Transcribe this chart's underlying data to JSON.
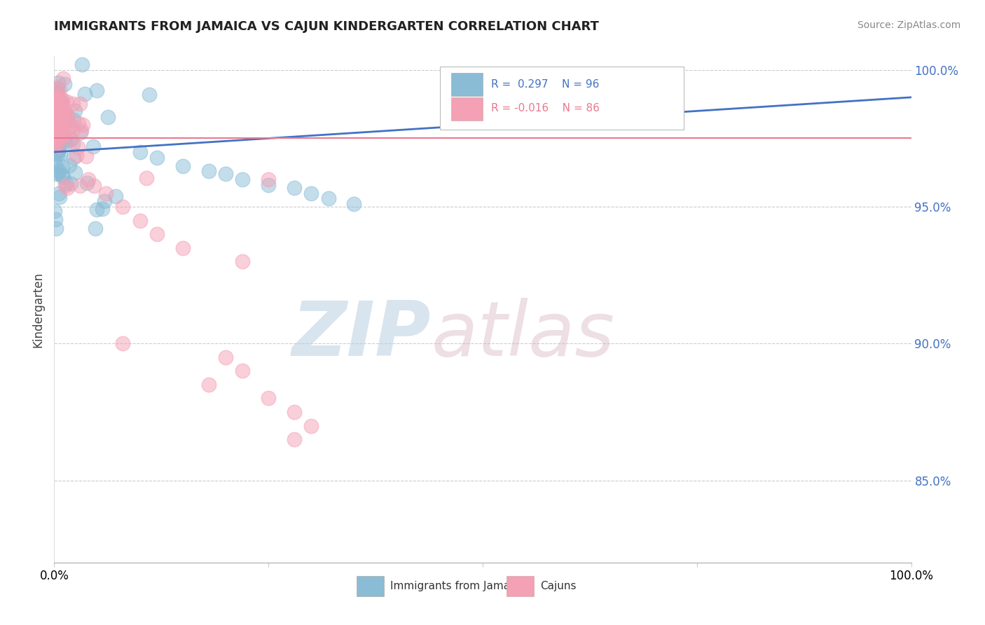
{
  "title": "IMMIGRANTS FROM JAMAICA VS CAJUN KINDERGARTEN CORRELATION CHART",
  "source": "Source: ZipAtlas.com",
  "ylabel": "Kindergarten",
  "xlim": [
    0.0,
    1.0
  ],
  "ylim": [
    0.82,
    1.005
  ],
  "yticks": [
    0.85,
    0.9,
    0.95,
    1.0
  ],
  "ytick_labels": [
    "85.0%",
    "90.0%",
    "95.0%",
    "100.0%"
  ],
  "legend_blue_R": "0.297",
  "legend_blue_N": "96",
  "legend_pink_R": "-0.016",
  "legend_pink_N": "86",
  "blue_color": "#8abcd6",
  "pink_color": "#f4a0b5",
  "blue_line_color": "#4472c4",
  "pink_line_color": "#e87a90",
  "background_color": "#ffffff",
  "grid_color": "#cccccc",
  "title_color": "#222222",
  "source_color": "#888888",
  "right_tick_color": "#4472c4",
  "legend_text_blue_color": "#4472c4",
  "legend_text_pink_color": "#e87a90"
}
